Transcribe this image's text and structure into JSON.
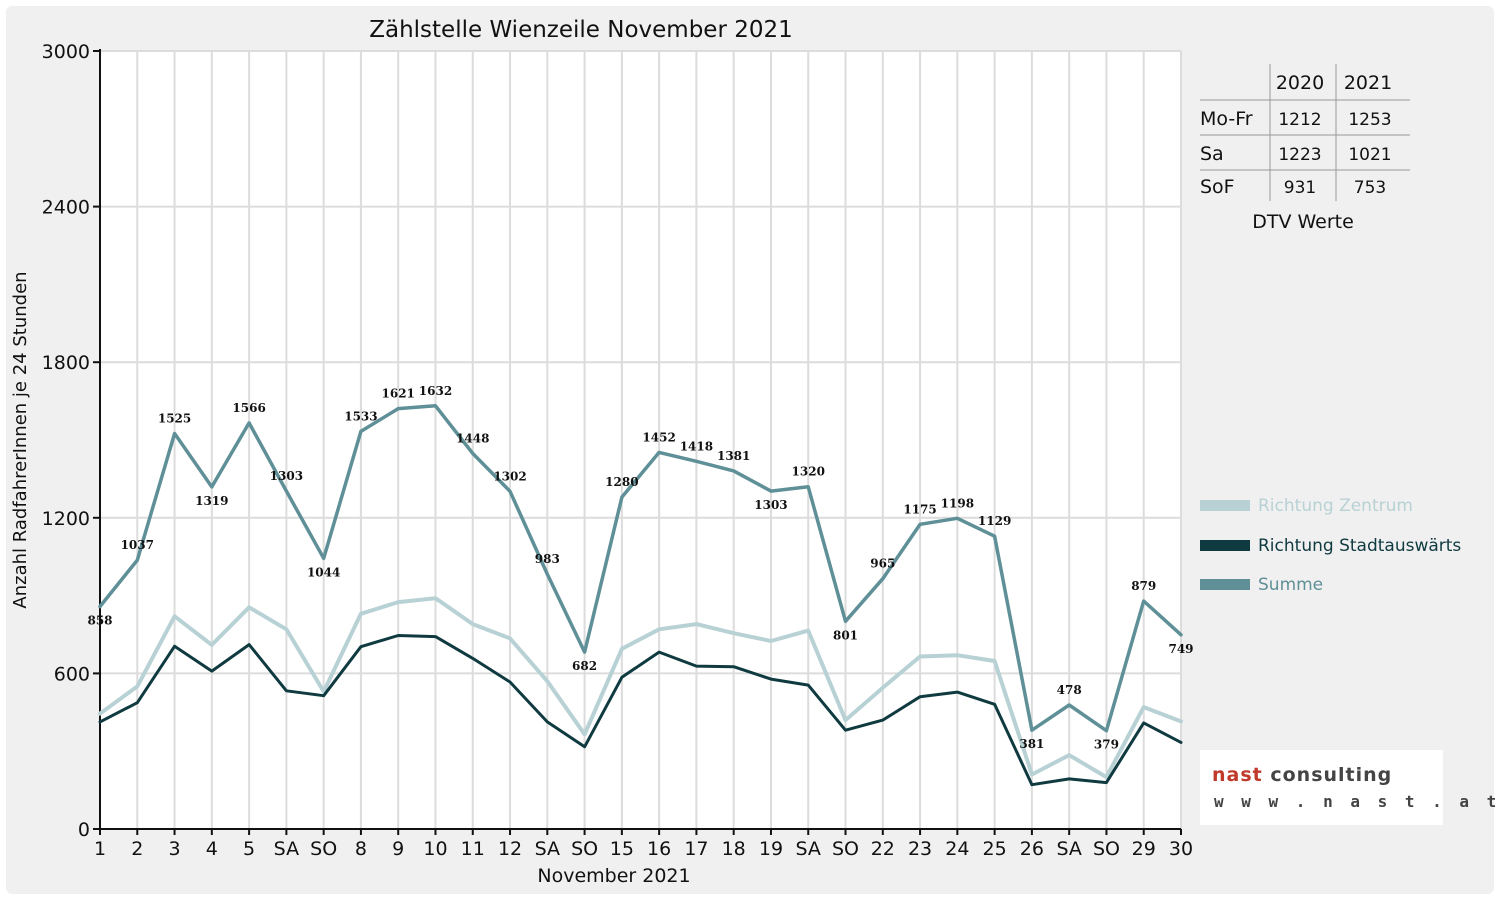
{
  "colors": {
    "zentrum": "#b8d1d4",
    "stadtauswaerts": "#0f3a40",
    "summe": "#5f8f97",
    "weekend_red": "#e00000",
    "grid": "#dcdcdc",
    "logo_red": "#c0392b",
    "logo_gray": "#444444"
  },
  "chart_data": {
    "type": "line",
    "title": "Zählstelle Wienzeile November 2021",
    "xlabel": "November 2021",
    "ylabel": "Anzahl RadfahrerInnen je 24 Stunden",
    "ylim": [
      0,
      3000
    ],
    "yticks": [
      0,
      600,
      1200,
      1800,
      2400,
      3000
    ],
    "grid": true,
    "legend_position": "right",
    "categories": [
      "1",
      "2",
      "3",
      "4",
      "5",
      "SA",
      "SO",
      "8",
      "9",
      "10",
      "11",
      "12",
      "SA",
      "SO",
      "15",
      "16",
      "17",
      "18",
      "19",
      "SA",
      "SO",
      "22",
      "23",
      "24",
      "25",
      "26",
      "SA",
      "SO",
      "29",
      "30"
    ],
    "red_categories": [
      0,
      6,
      13,
      20,
      27
    ],
    "series": [
      {
        "name": "Richtung Zentrum",
        "key": "zentrum",
        "values": [
          445,
          550,
          820,
          710,
          855,
          770,
          530,
          830,
          875,
          890,
          790,
          735,
          570,
          365,
          695,
          770,
          790,
          755,
          725,
          765,
          420,
          545,
          665,
          670,
          648,
          210,
          285,
          200,
          470,
          415
        ]
      },
      {
        "name": "Richtung Stadtauswärts",
        "key": "stadtauswaerts",
        "values": [
          413,
          487,
          705,
          609,
          711,
          533,
          514,
          703,
          746,
          742,
          658,
          567,
          413,
          317,
          585,
          682,
          628,
          626,
          578,
          555,
          381,
          420,
          510,
          528,
          481,
          171,
          193,
          179,
          409,
          334
        ]
      },
      {
        "name": "Summe",
        "key": "summe",
        "values": [
          858,
          1037,
          1525,
          1319,
          1566,
          1303,
          1044,
          1533,
          1621,
          1632,
          1448,
          1302,
          983,
          682,
          1280,
          1452,
          1418,
          1381,
          1303,
          1320,
          801,
          965,
          1175,
          1198,
          1129,
          381,
          478,
          379,
          879,
          749
        ]
      }
    ],
    "data_labels": [
      "858",
      "1037",
      "1525",
      "1319",
      "1566",
      "1303",
      "1044",
      "1533",
      "1621",
      "1632",
      "1448",
      "1302",
      "983",
      "682",
      "1280",
      "1452",
      "1418",
      "1381",
      "1303",
      "1320",
      "801",
      "965",
      "1175",
      "1198",
      "1129",
      "381",
      "478",
      "379",
      "879",
      "749"
    ]
  },
  "dtv_table": {
    "headers": [
      "",
      "2020",
      "2021"
    ],
    "rows": [
      {
        "label": "Mo-Fr",
        "v2020": "1212",
        "v2021": "1253"
      },
      {
        "label": "Sa",
        "v2020": "1223",
        "v2021": "1021"
      },
      {
        "label": "SoF",
        "v2020": "931",
        "v2021": "753"
      }
    ],
    "caption": "DTV Werte"
  },
  "logo": {
    "name_part1": "nast",
    "name_part2": " consulting",
    "url": "w w w . n a s t . a t"
  }
}
